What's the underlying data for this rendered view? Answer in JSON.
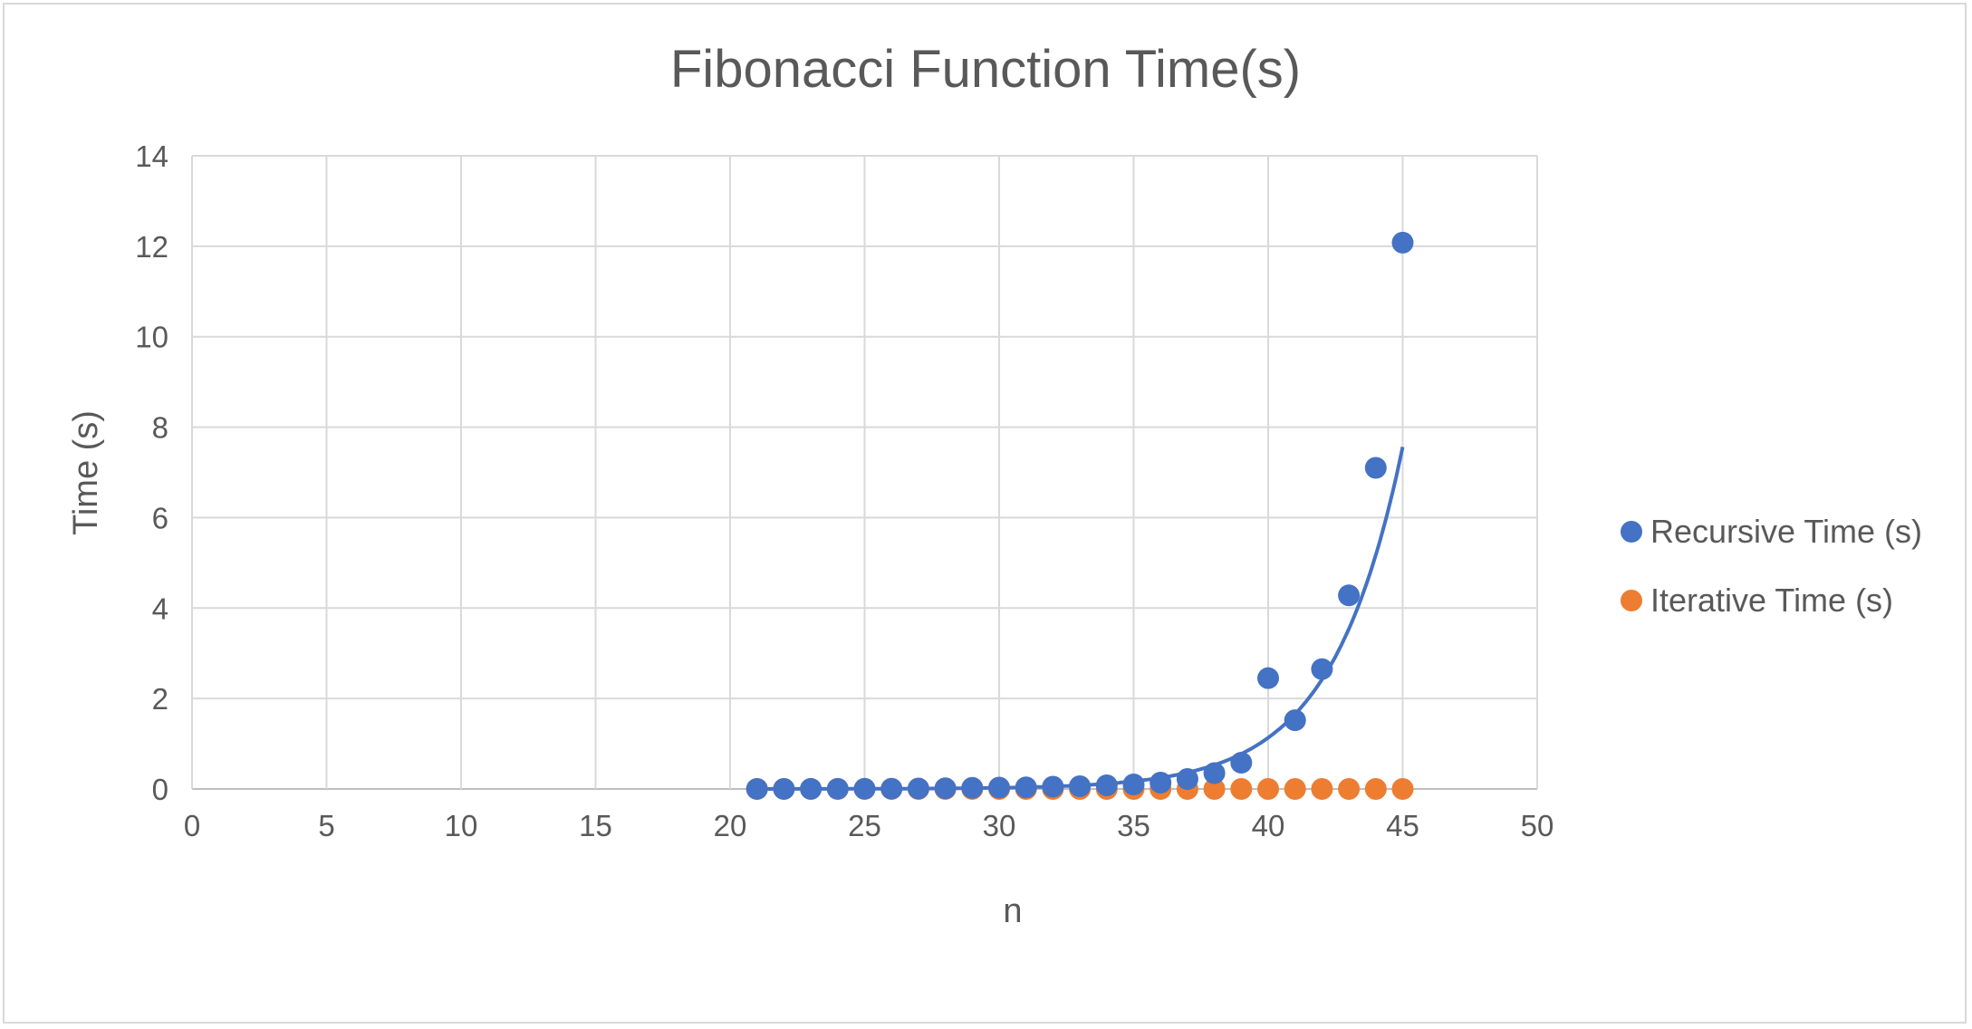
{
  "chart_data": {
    "type": "scatter",
    "title": "Fibonacci Function Time(s)",
    "xlabel": "n",
    "ylabel": "Time (s)",
    "xlim": [
      0,
      50
    ],
    "ylim": [
      0,
      14
    ],
    "xticks": [
      0,
      5,
      10,
      15,
      20,
      25,
      30,
      35,
      40,
      45,
      50
    ],
    "yticks": [
      0,
      2,
      4,
      6,
      8,
      10,
      12,
      14
    ],
    "grid": true,
    "legend_position": "right",
    "trendline": {
      "series": "Recursive Time (s)",
      "kind": "exponential",
      "color": "#4472c4"
    },
    "series": [
      {
        "name": "Recursive Time (s)",
        "color": "#4472c4",
        "x": [
          21,
          22,
          23,
          24,
          25,
          26,
          27,
          28,
          29,
          30,
          31,
          32,
          33,
          34,
          35,
          36,
          37,
          38,
          39,
          40,
          41,
          42,
          43,
          44,
          45
        ],
        "y": [
          0.001,
          0.001,
          0.002,
          0.003,
          0.004,
          0.006,
          0.01,
          0.015,
          0.025,
          0.03,
          0.035,
          0.05,
          0.06,
          0.08,
          0.1,
          0.14,
          0.22,
          0.35,
          0.58,
          2.45,
          1.52,
          2.65,
          4.28,
          7.1,
          12.08
        ]
      },
      {
        "name": "Iterative Time (s)",
        "color": "#ed7d31",
        "x": [
          21,
          22,
          23,
          24,
          25,
          26,
          27,
          28,
          29,
          30,
          31,
          32,
          33,
          34,
          35,
          36,
          37,
          38,
          39,
          40,
          41,
          42,
          43,
          44,
          45
        ],
        "y": [
          0,
          0,
          0,
          0,
          0,
          0,
          0,
          0,
          0,
          0,
          0,
          0,
          0,
          0,
          0,
          0,
          0,
          0,
          0,
          0,
          0,
          0,
          0,
          0,
          0
        ]
      }
    ]
  }
}
